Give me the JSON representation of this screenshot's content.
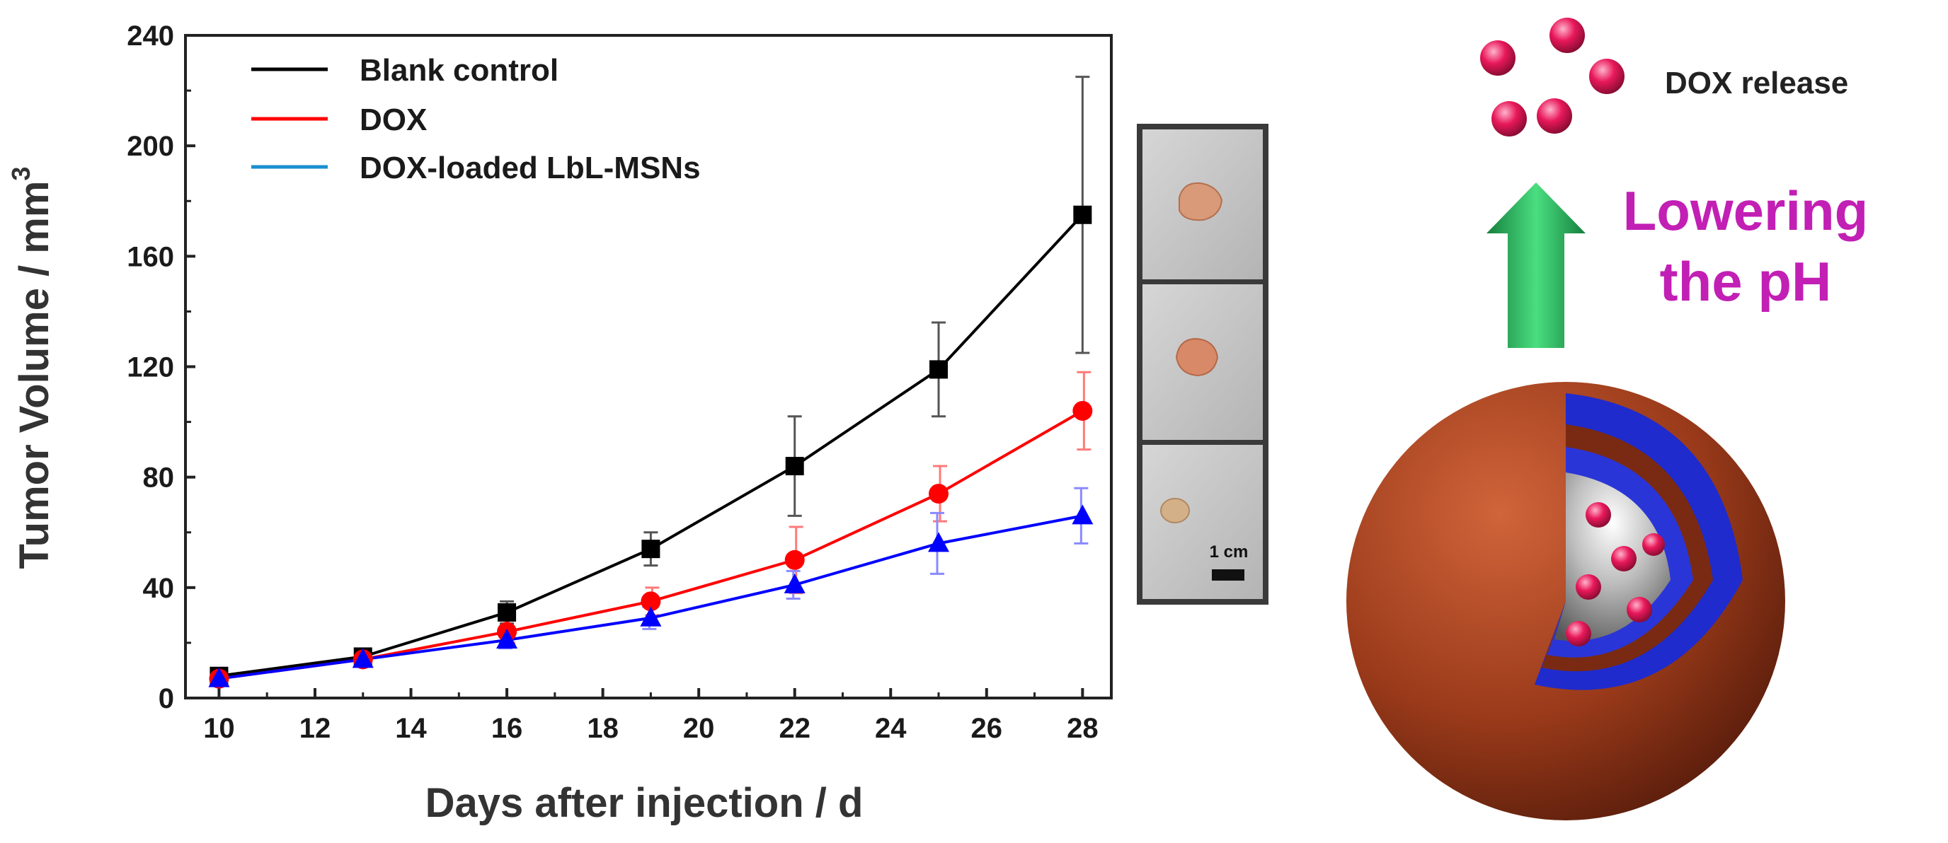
{
  "chart_data": {
    "type": "line",
    "title": "",
    "xlabel": "Days after injection / d",
    "ylabel": "Tumor Volume / mm",
    "ylabel_superscript": "3",
    "xlim": [
      9.3,
      28.6
    ],
    "ylim": [
      0,
      240
    ],
    "xticks": [
      10,
      12,
      14,
      16,
      18,
      20,
      22,
      24,
      26,
      28
    ],
    "yticks": [
      0,
      40,
      80,
      120,
      160,
      200,
      240
    ],
    "grid": false,
    "legend_position": "top-left",
    "x": [
      10,
      13,
      16,
      19,
      22,
      25,
      28
    ],
    "series": [
      {
        "name": "Blank control",
        "color": "#000000",
        "marker": "square",
        "values": [
          8,
          15,
          31,
          54,
          84,
          119,
          175
        ],
        "errors": [
          2,
          2,
          4,
          6,
          18,
          17,
          50
        ]
      },
      {
        "name": "DOX",
        "color": "#ff0000",
        "marker": "circle",
        "values": [
          7,
          14,
          24,
          35,
          50,
          74,
          104
        ],
        "errors": [
          2,
          2,
          4,
          5,
          12,
          10,
          14
        ]
      },
      {
        "name": "DOX-loaded LbL-MSNs",
        "color": "#0000ff",
        "legend_color": "#1a8fd0",
        "marker": "triangle",
        "values": [
          7,
          14,
          21,
          29,
          41,
          56,
          66
        ],
        "errors": [
          2,
          2,
          3,
          4,
          5,
          11,
          10
        ]
      }
    ]
  },
  "photo_panel": {
    "scale_label": "1 cm"
  },
  "schematic": {
    "release_label": "DOX release",
    "trigger_line1": "Lowering",
    "trigger_line2": "the pH",
    "trigger_color": "#c21fb5",
    "arrow_color": "#22c55e",
    "drug_color": "#e8185a",
    "shell_color": "#9a3a1a",
    "layer_color": "#1f2bcc",
    "core_color": "#b8b8b8"
  }
}
